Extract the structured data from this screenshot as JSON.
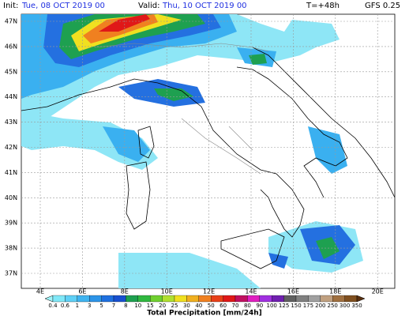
{
  "header": {
    "init_label": "Init:",
    "init_time": "Tue, 08 OCT 2019  00",
    "valid_label": "Valid:",
    "valid_time": "Thu, 10 OCT 2019  00",
    "lead": "T=+48h",
    "model": "GFS 0.25"
  },
  "lat_labels": [
    "47N",
    "46N",
    "45N",
    "44N",
    "43N",
    "42N",
    "41N",
    "40N",
    "39N",
    "38N",
    "37N"
  ],
  "lon_labels": [
    "4E",
    "6E",
    "8E",
    "10E",
    "12E",
    "14E",
    "16E",
    "18E",
    "20E"
  ],
  "colorbar": {
    "labels": [
      "0.4",
      "0.6",
      "1",
      "3",
      "5",
      "7",
      "8",
      "10",
      "15",
      "20",
      "25",
      "30",
      "40",
      "50",
      "60",
      "70",
      "80",
      "90",
      "100",
      "125",
      "150",
      "175",
      "200",
      "250",
      "300",
      "350"
    ],
    "title": "Total Precipitation [mm/24h]"
  }
}
